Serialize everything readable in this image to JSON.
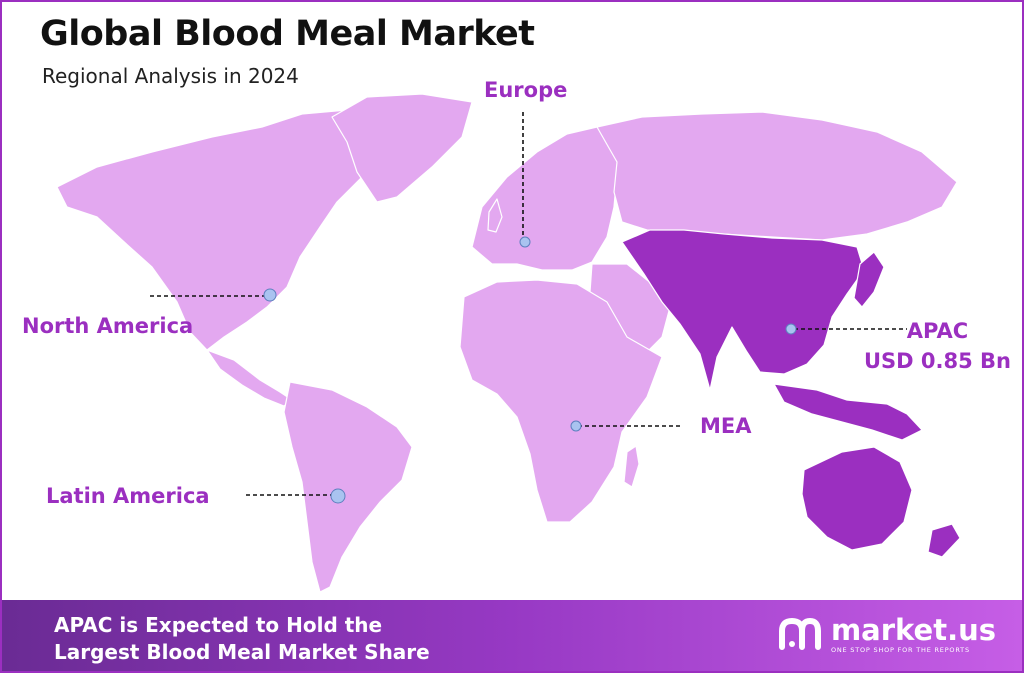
{
  "header": {
    "title": "Global Blood Meal Market",
    "subtitle": "Regional Analysis in 2024"
  },
  "regions": [
    {
      "key": "north_america",
      "label": "North America",
      "highlight": false
    },
    {
      "key": "europe",
      "label": "Europe",
      "highlight": false
    },
    {
      "key": "apac",
      "label": "APAC",
      "value": "USD 0.85 Bn",
      "highlight": true
    },
    {
      "key": "mea",
      "label": "MEA",
      "highlight": false
    },
    {
      "key": "latin_america",
      "label": "Latin America",
      "highlight": false
    }
  ],
  "colors": {
    "land": "#e3a8f0",
    "land_highlight": "#9b2fc0",
    "accent": "#9b2fc0",
    "marker": "#a9c3f0",
    "banner_start": "#6a2b94",
    "banner_end": "#c65ee6"
  },
  "banner": {
    "line1": "APAC is Expected to Hold the",
    "line2": "Largest Blood Meal Market Share"
  },
  "logo": {
    "name": "market.us",
    "tagline": "ONE STOP SHOP FOR THE REPORTS",
    "icon": "market-us-logo-icon"
  }
}
